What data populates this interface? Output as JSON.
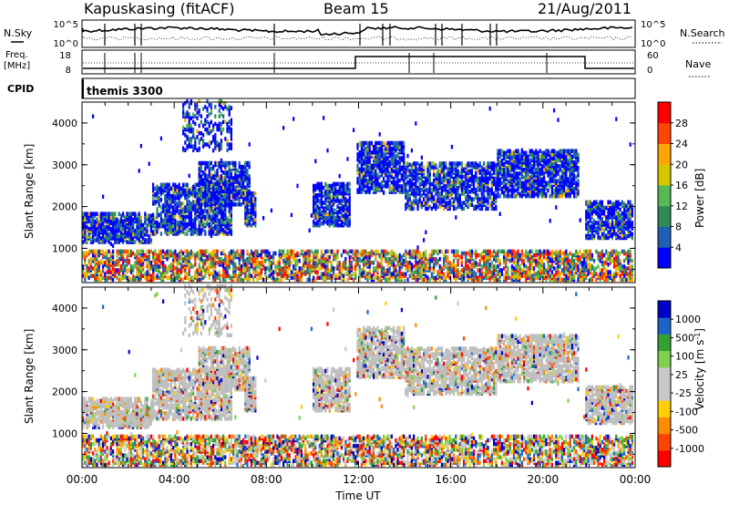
{
  "header": {
    "station": "Kapuskasing (fitACF)",
    "beam": "Beam 15",
    "date": "21/Aug/2011"
  },
  "nsky_panel": {
    "left_label": "N.Sky",
    "right_label": "N.Search",
    "left_ticks": [
      "10^5",
      "10^0"
    ],
    "right_ticks": [
      "10^5",
      "10^0"
    ]
  },
  "freq_panel": {
    "left_label_1": "Freq.",
    "left_label_2": "[MHz]",
    "right_label": "Nave",
    "left_ticks": [
      "18",
      "8"
    ],
    "right_ticks": [
      "60",
      "0"
    ]
  },
  "cpid_panel": {
    "label": "CPID",
    "value": "themis 3300"
  },
  "colors": {
    "power_scale": [
      "#0000ff",
      "#1f5fb4",
      "#2e8b57",
      "#55b955",
      "#d4c800",
      "#ffa500",
      "#ff4500",
      "#ff0000"
    ],
    "velocity_scale": [
      "#0000c8",
      "#1e64c8",
      "#32a032",
      "#7fd050",
      "#c8c8c8",
      "#c8c8c8",
      "#ffd000",
      "#ff8c00",
      "#ff4500",
      "#ff0000"
    ],
    "ground_scatter": "#bebebe"
  },
  "chart_data": [
    {
      "type": "heatmap",
      "title": "",
      "xlabel": "",
      "ylabel": "Slant Range [km]",
      "xlim": [
        "00:00",
        "24:00"
      ],
      "ylim": [
        180,
        4500
      ],
      "x_ticks": [
        "00:00",
        "04:00",
        "08:00",
        "12:00",
        "16:00",
        "20:00",
        "00:00"
      ],
      "y_ticks": [
        1000,
        2000,
        3000,
        4000
      ],
      "colorbar": {
        "label": "Power [dB]",
        "ticks": [
          4,
          8,
          12,
          16,
          20,
          24,
          28
        ],
        "range": [
          0,
          30
        ]
      }
    },
    {
      "type": "heatmap",
      "title": "",
      "xlabel": "Time UT",
      "ylabel": "Slant Range [km]",
      "xlim": [
        "00:00",
        "24:00"
      ],
      "ylim": [
        180,
        4500
      ],
      "x_ticks": [
        "00:00",
        "04:00",
        "08:00",
        "12:00",
        "16:00",
        "20:00",
        "00:00"
      ],
      "y_ticks": [
        1000,
        2000,
        3000,
        4000
      ],
      "colorbar": {
        "label": "Velocity [m s^-1]",
        "ticks": [
          1000,
          500,
          100,
          25,
          -25,
          -100,
          -500,
          -1000
        ]
      }
    }
  ]
}
